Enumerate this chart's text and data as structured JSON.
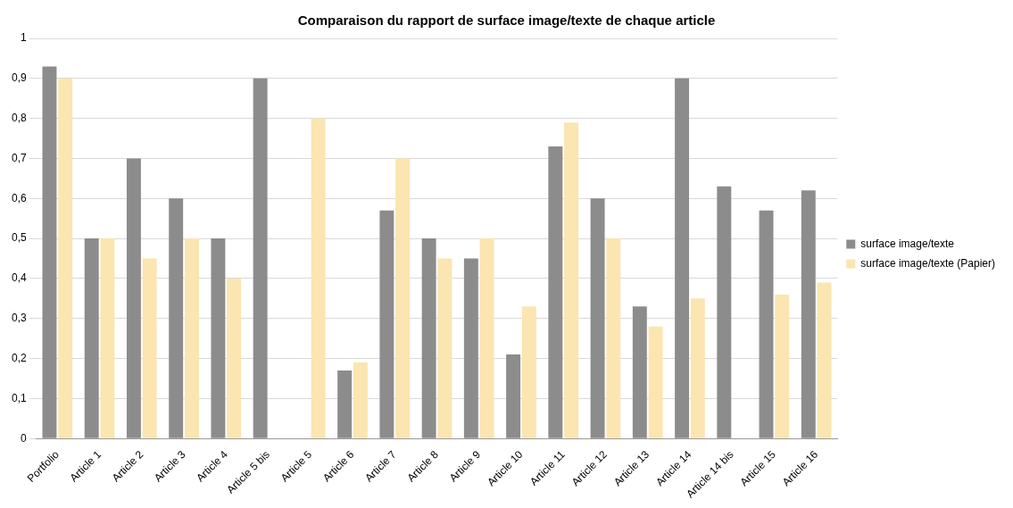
{
  "chart_data": {
    "type": "bar",
    "title": "Comparaison du rapport de surface image/texte de chaque article",
    "categories": [
      "Portfolio",
      "Article 1",
      "Article 2",
      "Article 3",
      "Article 4",
      "Article 5 bis",
      "Article 5",
      "Article 6",
      "Article 7",
      "Article 8",
      "Article 9",
      "Article 10",
      "Article 11",
      "Article 12",
      "Article 13",
      "Article 14",
      "Article 14 bis",
      "Article 15",
      "Article 16"
    ],
    "series": [
      {
        "name": "surface image/texte",
        "color": "#8c8c8c",
        "values": [
          0.93,
          0.5,
          0.7,
          0.6,
          0.5,
          0.9,
          null,
          0.17,
          0.57,
          0.5,
          0.45,
          0.21,
          0.73,
          0.6,
          0.33,
          0.9,
          0.63,
          0.57,
          0.62
        ]
      },
      {
        "name": "surface image/texte (Papier)",
        "color": "#fbe5b0",
        "values": [
          0.9,
          0.5,
          0.45,
          0.5,
          0.4,
          null,
          0.8,
          0.19,
          0.7,
          0.45,
          0.5,
          0.33,
          0.79,
          0.5,
          0.28,
          0.35,
          null,
          0.36,
          0.39
        ]
      }
    ],
    "ylim": [
      0,
      1
    ],
    "yticks": [
      0,
      {
        "value": 0.1,
        "label": "0,1"
      },
      {
        "value": 0.2,
        "label": "0,2"
      },
      {
        "value": 0.3,
        "label": "0,3"
      },
      {
        "value": 0.4,
        "label": "0,4"
      },
      {
        "value": 0.5,
        "label": "0,5"
      },
      {
        "value": 0.6,
        "label": "0,6"
      },
      {
        "value": 0.7,
        "label": "0,7"
      },
      {
        "value": 0.8,
        "label": "0,8"
      },
      {
        "value": 0.9,
        "label": "0,9"
      },
      1
    ],
    "grid": "y",
    "legend": "right"
  }
}
